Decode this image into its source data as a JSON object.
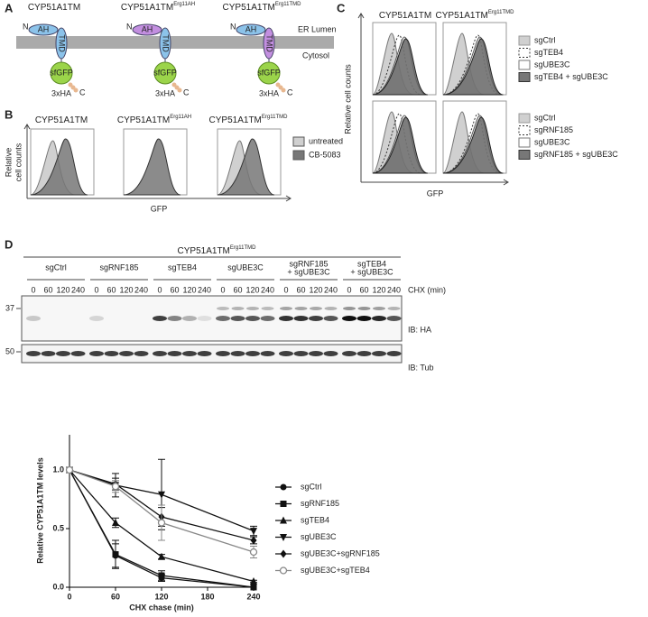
{
  "panels": {
    "a": "A",
    "b": "B",
    "c": "C",
    "d": "D"
  },
  "constructs": [
    {
      "base": "CYP51A1TM"
    },
    {
      "base": "CYP51A1TM",
      "sup": "Erg11AH"
    },
    {
      "base": "CYP51A1TM",
      "sup": "Erg11TMD"
    }
  ],
  "diagram": {
    "n": "N",
    "ah": "AH",
    "tmd": "TMD",
    "gfp": "sfGFP",
    "ha": "3xHA",
    "c": "C",
    "lumen": "ER Lumen",
    "cytosol": "Cytosol"
  },
  "panel_b": {
    "ylabel": [
      "Relative",
      "cell counts"
    ],
    "xlabel": "GFP",
    "legend": [
      "untreated",
      "CB-5083"
    ]
  },
  "panel_c": {
    "ylabel": "Relative cell counts",
    "xlabel": "GFP",
    "legend_top": [
      "sgCtrl",
      "sgTEB4",
      "sgUBE3C",
      "sgTEB4 + sgUBE3C"
    ],
    "legend_bottom": [
      "sgCtrl",
      "sgRNF185",
      "sgUBE3C",
      "sgRNF185 + sgUBE3C"
    ]
  },
  "blot": {
    "title": {
      "base": "CYP51A1TM",
      "sup": "Erg11TMD"
    },
    "groups": [
      [
        "sgCtrl"
      ],
      [
        "sgRNF185"
      ],
      [
        "sgTEB4"
      ],
      [
        "sgUBE3C"
      ],
      [
        "sgRNF185",
        "+ sgUBE3C"
      ],
      [
        "sgTEB4",
        "+ sgUBE3C"
      ]
    ],
    "timepoints": [
      "0",
      "60",
      "120",
      "240"
    ],
    "chx": "CHX (min)",
    "marker_ha": "37",
    "marker_tub": "50",
    "ib_ha": "IB: HA",
    "ib_tub": "IB: Tub"
  },
  "chart_data": {
    "type": "line",
    "ylabel": "Relative CYP51A1TM levels",
    "xlabel": "CHX chase (min)",
    "x": [
      0,
      60,
      120,
      240
    ],
    "xlim": [
      0,
      240
    ],
    "xticks": [
      0,
      60,
      120,
      180,
      240
    ],
    "ylim": [
      0,
      1.3
    ],
    "yticks": [
      {
        "value": 0,
        "label": "0.0"
      },
      {
        "value": 0.5,
        "label": "0.5"
      },
      {
        "value": 1,
        "label": "1.0"
      }
    ],
    "series": [
      {
        "name": "sgCtrl",
        "color": "#111111",
        "marker": "circle",
        "values": [
          1,
          0.27,
          0.08,
          0
        ],
        "errors": [
          0,
          0.1,
          0.03,
          0
        ]
      },
      {
        "name": "sgRNF185",
        "color": "#111111",
        "marker": "square",
        "values": [
          1,
          0.28,
          0.1,
          0
        ],
        "errors": [
          0,
          0.12,
          0.04,
          0
        ]
      },
      {
        "name": "sgTEB4",
        "color": "#111111",
        "marker": "triangle-up",
        "values": [
          1,
          0.55,
          0.26,
          0.05
        ],
        "errors": [
          0,
          0.04,
          0.02,
          0.01
        ]
      },
      {
        "name": "sgUBE3C",
        "color": "#111111",
        "marker": "triangle-down",
        "values": [
          1,
          0.87,
          0.79,
          0.48
        ],
        "errors": [
          0,
          0.1,
          0.3,
          0.04
        ]
      },
      {
        "name": "sgUBE3C+sgRNF185",
        "color": "#111111",
        "marker": "diamond",
        "values": [
          1,
          0.88,
          0.6,
          0.4
        ],
        "errors": [
          0,
          0.05,
          0.08,
          0.03
        ]
      },
      {
        "name": "sgUBE3C+sgTEB4",
        "color": "#888888",
        "marker": "open-circle",
        "values": [
          1,
          0.86,
          0.55,
          0.3
        ],
        "errors": [
          0,
          0.05,
          0.15,
          0.05
        ]
      }
    ]
  }
}
